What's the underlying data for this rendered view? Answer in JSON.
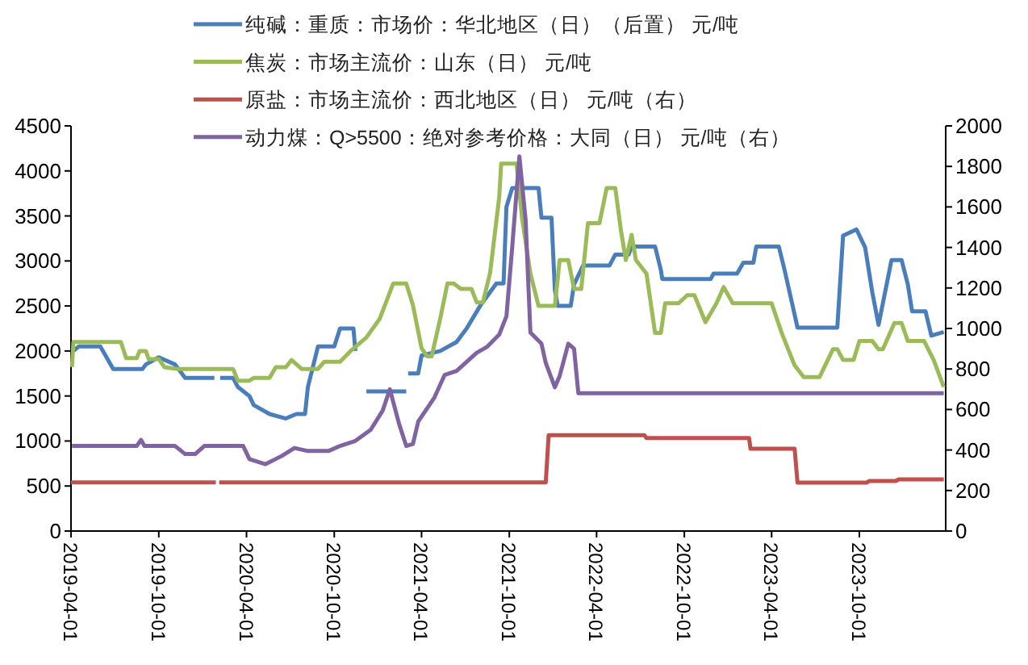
{
  "chart_data": {
    "type": "line",
    "legend": "top",
    "grid": false,
    "line_style": "solid",
    "xlim": [
      "2019-04-01",
      "2024-03-29"
    ],
    "xticks": [
      "2019-04-01",
      "2019-10-01",
      "2020-04-01",
      "2020-10-01",
      "2021-04-01",
      "2021-10-01",
      "2022-04-01",
      "2022-10-01",
      "2023-04-01",
      "2023-10-01"
    ],
    "ylim": [
      0,
      4500
    ],
    "yticks": [
      0,
      500,
      1000,
      1500,
      2000,
      2500,
      3000,
      3500,
      4000,
      4500
    ],
    "y2lim": [
      0,
      2000
    ],
    "y2ticks": [
      0,
      200,
      400,
      600,
      800,
      1000,
      1200,
      1400,
      1600,
      1800,
      2000
    ],
    "series": [
      {
        "name": "纯碱：重质：市场价：华北地区（日）（后置） 元/吨",
        "color": "#4a7ebb",
        "x": [
          "2019-04-06",
          "2019-04-17",
          "2019-06-01",
          "2019-06-12",
          "2019-06-28",
          "2019-08-28",
          "2019-09-04",
          "2019-10-01",
          "2019-11-04",
          "2019-11-25",
          "2020-01-25",
          "2020-02-01",
          "2020-02-06",
          "2020-03-04",
          "2020-03-14",
          "2020-04-07",
          "2020-04-16",
          "2020-05-19",
          "2020-06-22",
          "2020-07-14",
          "2020-08-01",
          "2020-08-07",
          "2020-08-28",
          "2020-10-01",
          "2020-10-13",
          "2020-11-10",
          "2020-11-14",
          "2020-11-25",
          "2020-12-07",
          "2021-02-28",
          "2021-03-03",
          "2021-03-04",
          "2021-03-25",
          "2021-04-01",
          "2021-05-10",
          "2021-06-13",
          "2021-07-04",
          "2021-08-01",
          "2021-09-04",
          "2021-09-19",
          "2021-09-25",
          "2021-10-07",
          "2021-12-01",
          "2021-12-07",
          "2021-12-28",
          "2022-01-04",
          "2022-01-10",
          "2022-02-06",
          "2022-02-13",
          "2022-03-04",
          "2022-04-28",
          "2022-05-10",
          "2022-06-07",
          "2022-06-13",
          "2022-08-01",
          "2022-08-13",
          "2022-08-16",
          "2022-11-25",
          "2022-12-01",
          "2023-01-19",
          "2023-02-01",
          "2023-02-22",
          "2023-02-28",
          "2023-04-16",
          "2023-04-28",
          "2023-05-25",
          "2023-08-16",
          "2023-08-28",
          "2023-09-25",
          "2023-10-13",
          "2023-10-28",
          "2023-11-10",
          "2023-11-19",
          "2023-12-07",
          "2023-12-28",
          "2024-01-10",
          "2024-01-19",
          "2024-02-16",
          "2024-02-28",
          "2024-03-25"
        ],
        "values": [
          2000,
          2050,
          2050,
          1950,
          1800,
          1800,
          1850,
          1930,
          1850,
          1700,
          1700,
          null,
          1700,
          1700,
          1600,
          1500,
          1400,
          1300,
          1250,
          1300,
          1300,
          1600,
          2050,
          2050,
          2250,
          2250,
          2000,
          null,
          1550,
          1550,
          null,
          1750,
          1750,
          1950,
          2000,
          2100,
          2250,
          2500,
          2750,
          2750,
          3600,
          3810,
          3810,
          3480,
          3480,
          2680,
          2500,
          2500,
          2740,
          2950,
          2950,
          3070,
          3070,
          3160,
          3160,
          2900,
          2800,
          2800,
          2860,
          2860,
          2980,
          2980,
          3160,
          3160,
          2900,
          2260,
          2260,
          3280,
          3350,
          3150,
          2650,
          2290,
          2530,
          3010,
          3010,
          2740,
          2440,
          2440,
          2170,
          2210
        ]
      },
      {
        "name": "焦炭：市场主流价：山东（日） 元/吨",
        "color": "#9bbb59",
        "x": [
          "2019-04-03",
          "2019-04-06",
          "2019-07-14",
          "2019-07-25",
          "2019-08-16",
          "2019-08-22",
          "2019-09-04",
          "2019-09-10",
          "2019-10-01",
          "2019-10-13",
          "2019-11-10",
          "2020-03-04",
          "2020-03-14",
          "2020-04-07",
          "2020-04-16",
          "2020-05-19",
          "2020-06-01",
          "2020-06-22",
          "2020-07-04",
          "2020-07-25",
          "2020-08-28",
          "2020-09-10",
          "2020-10-13",
          "2020-11-04",
          "2020-12-07",
          "2021-01-04",
          "2021-02-01",
          "2021-02-28",
          "2021-03-14",
          "2021-04-01",
          "2021-04-13",
          "2021-04-22",
          "2021-05-10",
          "2021-05-25",
          "2021-06-07",
          "2021-06-22",
          "2021-07-14",
          "2021-07-25",
          "2021-08-07",
          "2021-08-22",
          "2021-09-10",
          "2021-09-14",
          "2021-10-16",
          "2021-10-28",
          "2021-11-14",
          "2021-12-01",
          "2022-01-04",
          "2022-01-14",
          "2022-02-01",
          "2022-02-13",
          "2022-02-28",
          "2022-03-14",
          "2022-04-07",
          "2022-04-22",
          "2022-05-10",
          "2022-05-22",
          "2022-06-01",
          "2022-06-13",
          "2022-06-22",
          "2022-07-14",
          "2022-08-01",
          "2022-08-13",
          "2022-08-22",
          "2022-09-19",
          "2022-10-07",
          "2022-10-22",
          "2022-11-14",
          "2022-12-07",
          "2022-12-22",
          "2023-01-10",
          "2023-04-01",
          "2023-04-22",
          "2023-05-19",
          "2023-06-07",
          "2023-07-10",
          "2023-08-07",
          "2023-08-16",
          "2023-08-28",
          "2023-09-19",
          "2023-10-01",
          "2023-10-28",
          "2023-11-10",
          "2023-11-19",
          "2023-12-13",
          "2023-12-28",
          "2024-01-10",
          "2024-02-13",
          "2024-03-04",
          "2024-03-25"
        ],
        "values": [
          1820,
          2100,
          2100,
          1920,
          1920,
          2000,
          2000,
          1910,
          1910,
          1820,
          1800,
          1800,
          1670,
          1670,
          1700,
          1700,
          1820,
          1820,
          1900,
          1800,
          1800,
          1880,
          1880,
          2000,
          2150,
          2360,
          2750,
          2750,
          2510,
          2030,
          1940,
          1940,
          2360,
          2750,
          2750,
          2690,
          2690,
          2540,
          2540,
          2870,
          3710,
          4080,
          4080,
          3460,
          2860,
          2500,
          2500,
          3010,
          3010,
          2690,
          2690,
          3420,
          3420,
          3810,
          3810,
          3330,
          3010,
          3290,
          3010,
          2860,
          2200,
          2200,
          2530,
          2530,
          2620,
          2620,
          2320,
          2530,
          2710,
          2530,
          2530,
          2200,
          1840,
          1710,
          1710,
          2020,
          2020,
          1900,
          1900,
          2110,
          2110,
          2020,
          2020,
          2310,
          2310,
          2110,
          2110,
          1900,
          1600
        ]
      },
      {
        "name": "原盐：市场主流价：西北地区（日） 元/吨（右）",
        "color": "#c0504d",
        "axis": "y2",
        "x": [
          "2019-04-01",
          "2020-01-28",
          "2020-02-01",
          "2020-02-04",
          "2021-12-16",
          "2021-12-22",
          "2022-07-10",
          "2022-07-14",
          "2023-02-13",
          "2023-02-16",
          "2023-05-19",
          "2023-05-25",
          "2023-10-16",
          "2023-10-22",
          "2023-12-16",
          "2023-12-22",
          "2024-02-13",
          "2024-03-25"
        ],
        "values": [
          240,
          240,
          null,
          240,
          240,
          473,
          473,
          459,
          459,
          406,
          406,
          239,
          239,
          247,
          247,
          255,
          255,
          255
        ]
      },
      {
        "name": "动力煤：Q>5500：绝对参考价格：大同（日） 元/吨（右）",
        "color": "#8064a2",
        "axis": "y2",
        "x": [
          "2019-04-03",
          "2019-08-16",
          "2019-08-25",
          "2019-09-01",
          "2019-11-04",
          "2019-11-25",
          "2019-12-16",
          "2020-01-04",
          "2020-03-25",
          "2020-04-07",
          "2020-05-10",
          "2020-06-13",
          "2020-07-10",
          "2020-08-07",
          "2020-09-19",
          "2020-10-13",
          "2020-11-14",
          "2020-12-16",
          "2021-01-10",
          "2021-01-25",
          "2021-02-13",
          "2021-02-28",
          "2021-03-14",
          "2021-03-25",
          "2021-04-28",
          "2021-05-19",
          "2021-06-13",
          "2021-07-04",
          "2021-07-25",
          "2021-08-16",
          "2021-09-10",
          "2021-09-25",
          "2021-10-07",
          "2021-10-22",
          "2021-11-04",
          "2021-11-14",
          "2021-12-07",
          "2021-12-16",
          "2022-01-04",
          "2022-01-14",
          "2022-02-01",
          "2022-02-13",
          "2022-02-22",
          "2024-03-25"
        ],
        "values": [
          420,
          420,
          450,
          420,
          420,
          380,
          380,
          420,
          420,
          355,
          330,
          370,
          410,
          395,
          395,
          420,
          445,
          500,
          595,
          700,
          530,
          420,
          430,
          540,
          660,
          770,
          790,
          835,
          880,
          910,
          970,
          1060,
          1400,
          1850,
          1535,
          980,
          925,
          830,
          710,
          765,
          925,
          900,
          680,
          680
        ]
      }
    ]
  }
}
